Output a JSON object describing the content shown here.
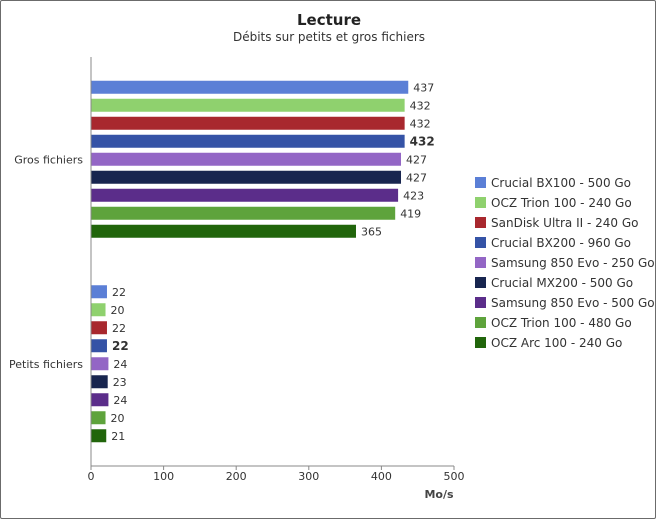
{
  "chart_data": {
    "type": "bar",
    "orientation": "horizontal",
    "title": "Lecture",
    "subtitle": "Débits sur petits et gros fichiers",
    "xlabel": "Mo/s",
    "ylabel": "",
    "xlim": [
      0,
      500
    ],
    "x_ticks": [
      "0",
      "100",
      "200",
      "300",
      "400",
      "500"
    ],
    "grid": false,
    "legend_position": "right",
    "categories": [
      "Gros fichiers",
      "Petits fichiers"
    ],
    "highlighted_series": "Crucial BX200 - 960 Go",
    "series": [
      {
        "name": "Crucial BX100 - 500 Go",
        "color": "#5b7fd6",
        "values": [
          437,
          22
        ]
      },
      {
        "name": "OCZ Trion 100 - 240 Go",
        "color": "#8fd16e",
        "values": [
          432,
          20
        ]
      },
      {
        "name": "SanDisk Ultra II - 240 Go",
        "color": "#a8282e",
        "values": [
          432,
          22
        ]
      },
      {
        "name": "Crucial BX200 - 960 Go",
        "color": "#3553a6",
        "values": [
          432,
          22
        ]
      },
      {
        "name": "Samsung 850 Evo - 250 Go",
        "color": "#9366c5",
        "values": [
          427,
          24
        ]
      },
      {
        "name": "Crucial MX200 - 500 Go",
        "color": "#18254f",
        "values": [
          427,
          23
        ]
      },
      {
        "name": "Samsung 850 Evo - 500 Go",
        "color": "#5b2d8a",
        "values": [
          423,
          24
        ]
      },
      {
        "name": "OCZ Trion 100 - 480 Go",
        "color": "#5ea33c",
        "values": [
          419,
          20
        ]
      },
      {
        "name": "OCZ Arc 100 - 240 Go",
        "color": "#21650b",
        "values": [
          365,
          21
        ]
      }
    ]
  }
}
